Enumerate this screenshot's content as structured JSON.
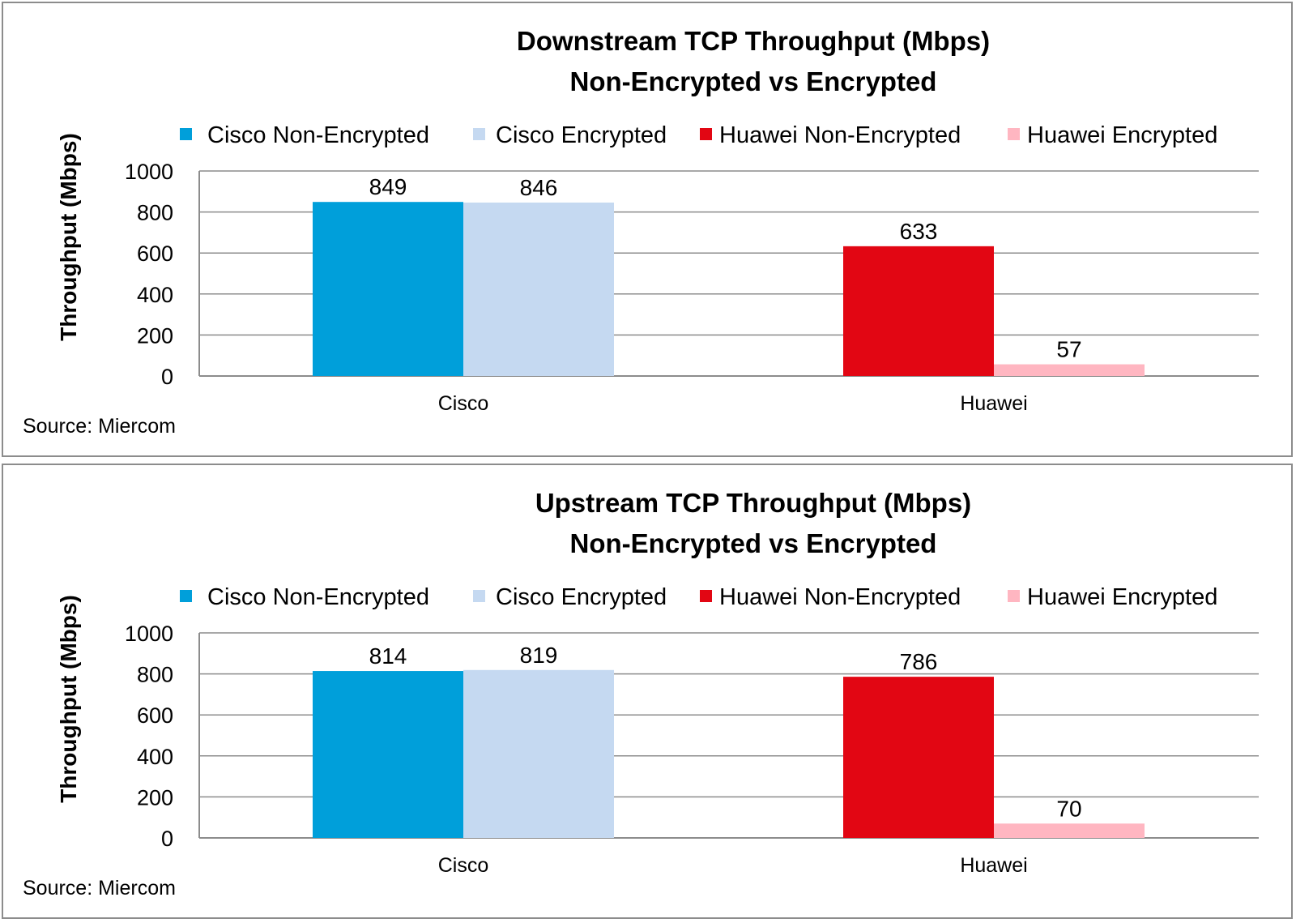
{
  "chart_data": [
    {
      "type": "bar",
      "title": "Downstream TCP Throughput (Mbps)",
      "subtitle": "Non-Encrypted vs Encrypted",
      "ylabel": "Throughput (Mbps)",
      "xlabel": "",
      "ylim": [
        0,
        1000
      ],
      "yticks": [
        0,
        200,
        400,
        600,
        800,
        1000
      ],
      "grid": true,
      "legend_position": "top",
      "categories": [
        "Cisco",
        "Huawei"
      ],
      "series": [
        {
          "name": "Cisco Non-Encrypted",
          "color": "#009FDA",
          "values": [
            849,
            null
          ]
        },
        {
          "name": "Cisco Encrypted",
          "color": "#C5D9F1",
          "values": [
            846,
            null
          ]
        },
        {
          "name": "Huawei Non-Encrypted",
          "color": "#E20613",
          "values": [
            null,
            633
          ]
        },
        {
          "name": "Huawei Encrypted",
          "color": "#FFB6C1",
          "values": [
            null,
            57
          ]
        }
      ],
      "source": "Source: Miercom"
    },
    {
      "type": "bar",
      "title": "Upstream TCP Throughput (Mbps)",
      "subtitle": "Non-Encrypted vs Encrypted",
      "ylabel": "Throughput (Mbps)",
      "xlabel": "",
      "ylim": [
        0,
        1000
      ],
      "yticks": [
        0,
        200,
        400,
        600,
        800,
        1000
      ],
      "grid": true,
      "legend_position": "top",
      "categories": [
        "Cisco",
        "Huawei"
      ],
      "series": [
        {
          "name": "Cisco Non-Encrypted",
          "color": "#009FDA",
          "values": [
            814,
            null
          ]
        },
        {
          "name": "Cisco Encrypted",
          "color": "#C5D9F1",
          "values": [
            819,
            null
          ]
        },
        {
          "name": "Huawei Non-Encrypted",
          "color": "#E20613",
          "values": [
            null,
            786
          ]
        },
        {
          "name": "Huawei Encrypted",
          "color": "#FFB6C1",
          "values": [
            null,
            70
          ]
        }
      ],
      "source": "Source: Miercom"
    }
  ]
}
